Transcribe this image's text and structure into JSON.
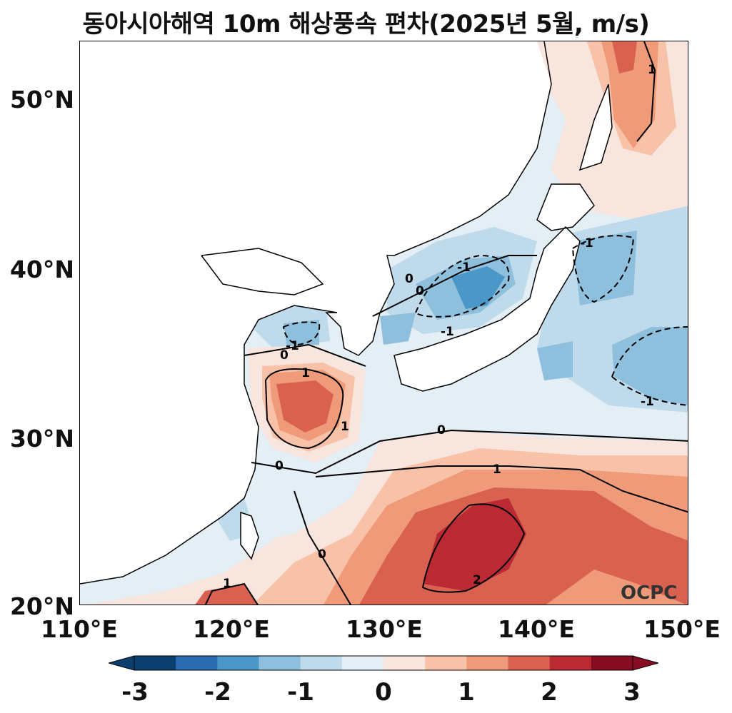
{
  "title": "동아시아해역 10m 해상풍속 편차(2025년 5월, m/s)",
  "watermark": "OCPC",
  "axes": {
    "lat_ticks": [
      "50°N",
      "40°N",
      "30°N",
      "20°N"
    ],
    "lon_ticks": [
      "110°E",
      "120°E",
      "130°E",
      "140°E",
      "150°E"
    ],
    "lat_range": [
      20,
      53.5
    ],
    "lon_range": [
      110,
      150
    ]
  },
  "colorbar": {
    "tick_labels": [
      "-3",
      "-2",
      "-1",
      "0",
      "1",
      "2",
      "3"
    ],
    "levels": [
      -3,
      -2.5,
      -2,
      -1.5,
      -1,
      -0.5,
      0,
      0.5,
      1,
      1.5,
      2,
      2.5,
      3
    ],
    "colors": [
      "#0c3f70",
      "#2b6cb0",
      "#4b98c8",
      "#8ebfdc",
      "#bfdaea",
      "#e3eef5",
      "#f8e5dd",
      "#f7c2a7",
      "#ef9b79",
      "#d96150",
      "#bb2a33",
      "#880d23"
    ],
    "extend": "both"
  },
  "contour_labels": {
    "c0a": "0",
    "c0b": "0",
    "c0c": "0",
    "c0d": "0",
    "c0e": "0",
    "c0f": "0",
    "c1a": "1",
    "c1b": "1",
    "c1c": "1",
    "c1d": "1",
    "c1e": "1",
    "c2a": "2",
    "cm1a": "-1",
    "cm1b": "-1",
    "cm1c": "-1",
    "cm1d": "-1",
    "cm1e": "-1"
  }
}
